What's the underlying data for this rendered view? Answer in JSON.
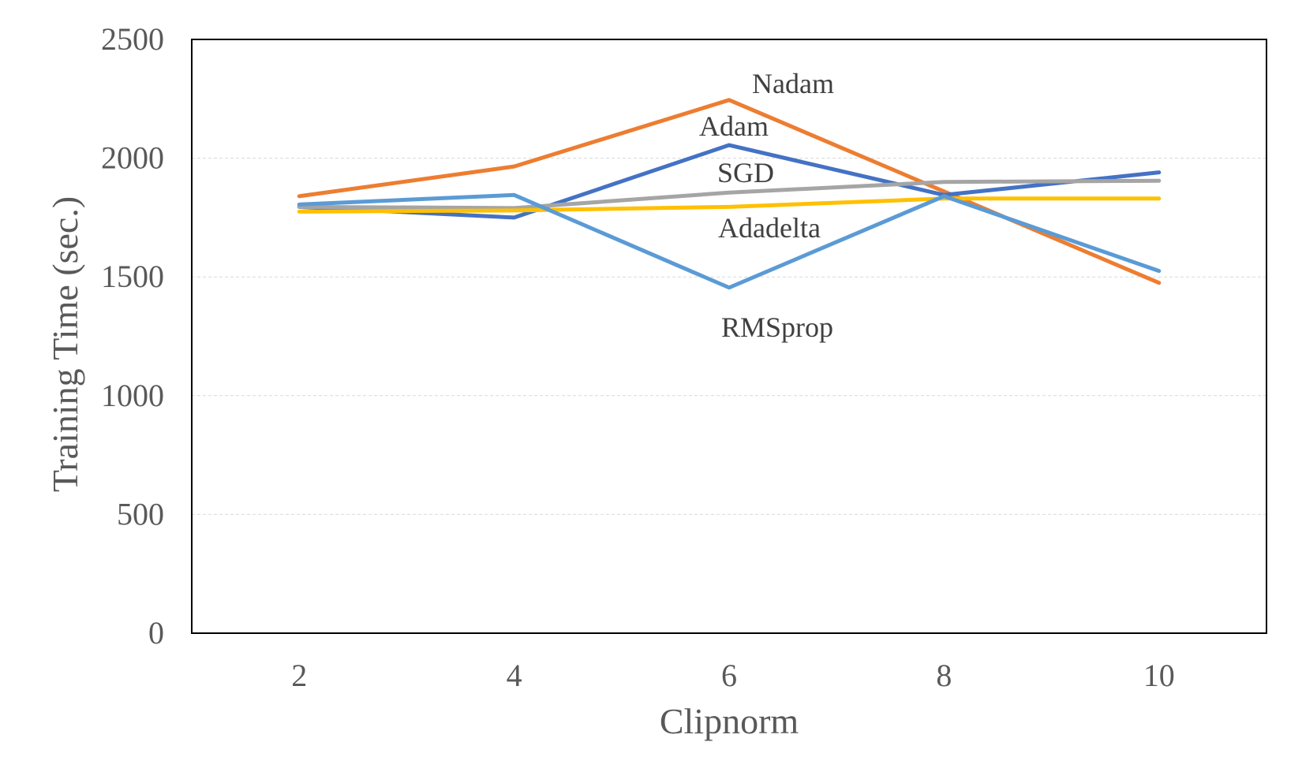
{
  "chart_data": {
    "type": "line",
    "title": "",
    "xlabel": "Clipnorm",
    "ylabel": "Training Time (sec.)",
    "x": [
      2,
      4,
      6,
      8,
      10
    ],
    "xlim": [
      1,
      11
    ],
    "ylim": [
      0,
      2500
    ],
    "yticks": [
      0,
      500,
      1000,
      1500,
      2000,
      2500
    ],
    "grid": true,
    "legend": "inline labels",
    "series": [
      {
        "name": "Nadam",
        "color": "#ED7D31",
        "values": [
          1840,
          1965,
          2245,
          1860,
          1475
        ]
      },
      {
        "name": "Adam",
        "color": "#4472C4",
        "values": [
          1795,
          1750,
          2055,
          1845,
          1940
        ]
      },
      {
        "name": "SGD",
        "color": "#A5A5A5",
        "values": [
          1795,
          1790,
          1855,
          1900,
          1905
        ]
      },
      {
        "name": "Adadelta",
        "color": "#FFC000",
        "values": [
          1775,
          1780,
          1795,
          1830,
          1830
        ]
      },
      {
        "name": "RMSprop",
        "color": "#5B9BD5",
        "values": [
          1805,
          1845,
          1455,
          1840,
          1525
        ]
      }
    ]
  }
}
